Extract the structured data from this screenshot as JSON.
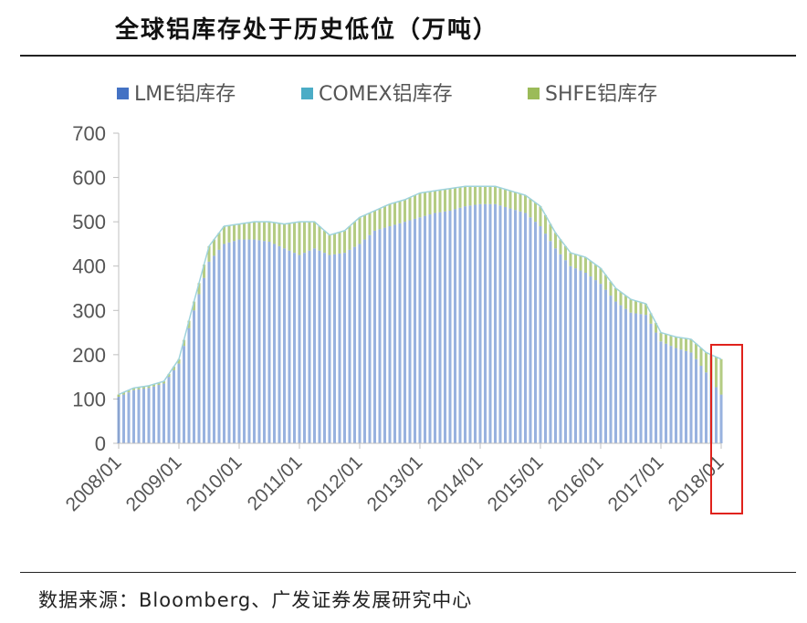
{
  "header": {
    "title": "全球铝库存处于历史低位（万吨）"
  },
  "footer": {
    "source_label": "数据来源：",
    "source_text": "Bloomberg、广发证券发展研究中心"
  },
  "colors": {
    "lme": "#4472c4",
    "comex": "#4bacc6",
    "shfe": "#9bbb59",
    "highlight": "#e0221c"
  },
  "highlight_box": {
    "from": "2017/11",
    "to": "2018/03"
  },
  "chart_data": {
    "type": "area",
    "stacked": true,
    "title": "全球铝库存处于历史低位（万吨）",
    "xlabel": "",
    "ylabel": "",
    "ylim": [
      0,
      700
    ],
    "yticks": [
      0,
      100,
      200,
      300,
      400,
      500,
      600,
      700
    ],
    "xticks": [
      "2008/01",
      "2009/01",
      "2010/01",
      "2011/01",
      "2012/01",
      "2013/01",
      "2014/01",
      "2015/01",
      "2016/01",
      "2017/01",
      "2018/01"
    ],
    "legend_position": "top",
    "grid": false,
    "x": [
      "2008/01",
      "2008/04",
      "2008/07",
      "2008/10",
      "2009/01",
      "2009/04",
      "2009/07",
      "2009/10",
      "2010/01",
      "2010/04",
      "2010/07",
      "2010/10",
      "2011/01",
      "2011/04",
      "2011/07",
      "2011/10",
      "2012/01",
      "2012/04",
      "2012/07",
      "2012/10",
      "2013/01",
      "2013/04",
      "2013/07",
      "2013/10",
      "2014/01",
      "2014/04",
      "2014/07",
      "2014/10",
      "2015/01",
      "2015/04",
      "2015/07",
      "2015/10",
      "2016/01",
      "2016/04",
      "2016/07",
      "2016/10",
      "2017/01",
      "2017/04",
      "2017/07",
      "2017/10",
      "2018/01"
    ],
    "series": [
      {
        "name": "LME铝库存",
        "color": "#4472c4",
        "values": [
          105,
          120,
          125,
          135,
          180,
          300,
          410,
          450,
          460,
          460,
          455,
          440,
          425,
          440,
          425,
          430,
          450,
          480,
          490,
          500,
          510,
          520,
          525,
          535,
          540,
          540,
          530,
          520,
          490,
          440,
          400,
          385,
          360,
          320,
          295,
          290,
          230,
          215,
          205,
          160,
          110
        ]
      },
      {
        "name": "COMEX铝库存",
        "color": "#4bacc6",
        "values": [
          0,
          0,
          0,
          0,
          0,
          0,
          0,
          0,
          0,
          0,
          0,
          0,
          0,
          0,
          0,
          0,
          0,
          0,
          0,
          0,
          0,
          0,
          0,
          0,
          0,
          0,
          0,
          0,
          0,
          0,
          0,
          0,
          0,
          0,
          0,
          0,
          0,
          0,
          0,
          0,
          0
        ]
      },
      {
        "name": "SHFE铝库存",
        "color": "#9bbb59",
        "values": [
          5,
          5,
          5,
          5,
          10,
          20,
          35,
          40,
          35,
          40,
          45,
          55,
          75,
          60,
          45,
          50,
          60,
          45,
          50,
          50,
          55,
          50,
          50,
          45,
          40,
          40,
          40,
          40,
          45,
          35,
          30,
          35,
          35,
          30,
          30,
          25,
          20,
          25,
          30,
          45,
          80
        ]
      }
    ]
  }
}
